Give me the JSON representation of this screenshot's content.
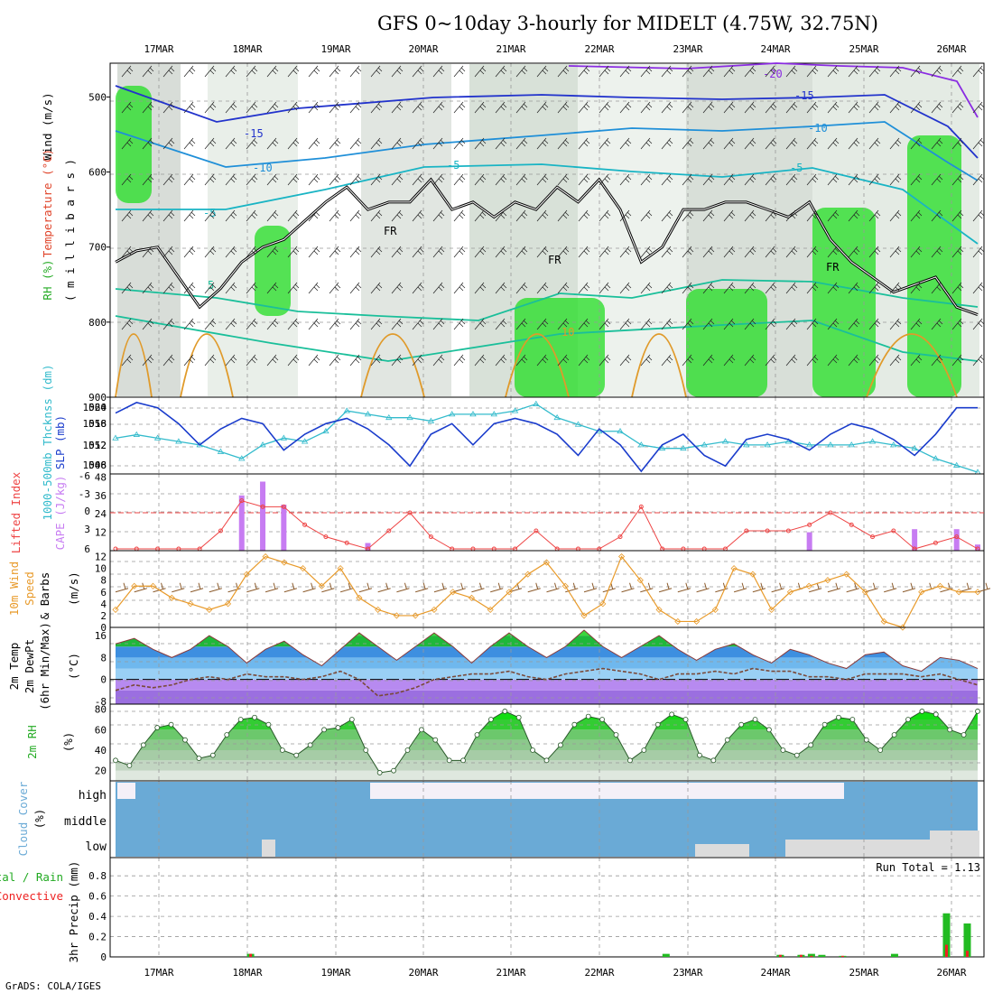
{
  "title": "GFS 0~10day 3-hourly for MIDELT (4.75W, 32.75N)",
  "footer": "GrADS: COLA/IGES",
  "dates": [
    "17MAR",
    "18MAR",
    "19MAR",
    "20MAR",
    "21MAR",
    "22MAR",
    "23MAR",
    "24MAR",
    "25MAR",
    "26MAR"
  ],
  "colors": {
    "rh_green": "#22dd22",
    "gray": "#c8cec8",
    "slp": "#1a3ccc",
    "thick": "#33bbcc",
    "lifted": "#ee4444",
    "cape": "#c77cf2",
    "wind": "#e89a2a",
    "barb": "#8b5a2b",
    "cloud": "#6aaad6",
    "rain": "#22bb22",
    "conv": "#ee2222"
  },
  "panel_labels": {
    "wind": "Wind (m/s)",
    "temperature": "Temperature (°C)",
    "rh": "RH (%)",
    "mb": "( m i l l i b a r s )",
    "slp": "SLP (mb)",
    "thickness": "1000-500mb Thcknss (dm)",
    "cape": "CAPE (J/kg)",
    "lifted": "Lifted Index",
    "wind10": "10m Wind",
    "wind10b": "Speed",
    "wind10c": "& Barbs",
    "wind10u": "(m/s)",
    "temp": "2m Temp",
    "dewpt": "2m DewPt",
    "minmax": "(6hr Min/Max)",
    "tunit": "(°C)",
    "rh2": "2m RH",
    "rhunit": "(%)",
    "cloud": "Cloud Cover",
    "cloudunit": "(%)",
    "precip_total": "Total / Rain",
    "precip_conv": "Convective",
    "precip": "3hr Precip (mm)",
    "run_total": "Run Total = 1.13"
  },
  "cloud_levels": [
    "high",
    "middle",
    "low"
  ],
  "chart_data": [
    {
      "type": "area",
      "name": "upper-air cross section",
      "ylabel": "millibars",
      "y_ticks": [
        500,
        600,
        700,
        800,
        900
      ],
      "ylim": [
        900,
        455
      ],
      "isotherm_labels": [
        "-20",
        "-15",
        "-10",
        "-5",
        "5",
        "10",
        "FR"
      ],
      "freezing_level_mb": [
        720,
        705,
        700,
        740,
        780,
        755,
        720,
        700,
        690,
        665,
        640,
        620,
        650,
        640,
        640,
        610,
        650,
        640,
        660,
        640,
        650,
        620,
        640,
        610,
        650,
        720,
        700,
        650,
        650,
        640,
        640,
        650,
        660,
        640,
        690,
        720,
        740,
        760,
        750,
        740,
        780,
        790
      ]
    },
    {
      "type": "line",
      "name": "slp and thickness",
      "ylabel": "SLP (mb)",
      "y_ticks_left": [
        546,
        552,
        558,
        564
      ],
      "y_ticks_right": [
        1008,
        1012,
        1016,
        1020
      ],
      "series": [
        {
          "name": "SLP (mb)",
          "ylim": [
            1006.5,
            1021
          ],
          "values": [
            1018,
            1020,
            1019,
            1016,
            1012,
            1015,
            1017,
            1016,
            1011,
            1014,
            1016,
            1017,
            1015,
            1012,
            1008,
            1014,
            1016,
            1012,
            1016,
            1017,
            1016,
            1014,
            1010,
            1015,
            1012,
            1007,
            1012,
            1014,
            1010,
            1008,
            1013,
            1014,
            1013,
            1011,
            1014,
            1016,
            1015,
            1013,
            1010,
            1014,
            1019,
            1019
          ]
        },
        {
          "name": "1000-500mb Thcknss (dm)",
          "ylim": [
            543.5,
            566
          ],
          "values": [
            554,
            555,
            554,
            553,
            552,
            550,
            548,
            552,
            554,
            553,
            556,
            562,
            561,
            560,
            560,
            559,
            561,
            561,
            561,
            562,
            564,
            560,
            558,
            556,
            556,
            552,
            551,
            551,
            552,
            553,
            552,
            552,
            553,
            552,
            552,
            552,
            553,
            552,
            551,
            548,
            546,
            544
          ]
        }
      ]
    },
    {
      "type": "bar",
      "name": "cape and lifted index",
      "ylabel": "CAPE (J/kg)",
      "y_ticks": [
        12,
        24,
        36,
        48
      ],
      "y_ticks_li": [
        "6",
        "3",
        "0",
        "-3",
        "-6"
      ],
      "ylim": [
        0,
        50
      ],
      "series": [
        {
          "name": "CAPE (J/kg)",
          "values": [
            0,
            0,
            0,
            0,
            0,
            0,
            36,
            45,
            30,
            0,
            0,
            0,
            5,
            0,
            0,
            0,
            0,
            0,
            0,
            0,
            0,
            0,
            0,
            0,
            0,
            0,
            0,
            0,
            0,
            0,
            0,
            0,
            0,
            12,
            0,
            0,
            0,
            0,
            14,
            0,
            14,
            4
          ]
        },
        {
          "name": "Lifted Index",
          "values": [
            6,
            6,
            6,
            6,
            6,
            3,
            -2,
            -1,
            -1,
            2,
            4,
            5,
            6,
            3,
            0,
            4,
            6,
            6,
            6,
            6,
            3,
            6,
            6,
            6,
            4,
            -1,
            6,
            6,
            6,
            6,
            3,
            3,
            3,
            2,
            0,
            2,
            4,
            3,
            6,
            5,
            4,
            6
          ]
        }
      ]
    },
    {
      "type": "line",
      "name": "10m wind speed",
      "ylabel": "(m/s)",
      "y_ticks": [
        0,
        2,
        4,
        6,
        8,
        10,
        12
      ],
      "ylim": [
        0,
        13
      ],
      "series": [
        {
          "name": "10m Wind Speed",
          "values": [
            3,
            7,
            7,
            5,
            4,
            3,
            4,
            9,
            12,
            11,
            10,
            7,
            10,
            5,
            3,
            2,
            2,
            3,
            6,
            5,
            3,
            6,
            9,
            11,
            7,
            2,
            4,
            12,
            8,
            3,
            1,
            1,
            3,
            10,
            9,
            3,
            6,
            7,
            8,
            9,
            6,
            1,
            0,
            6,
            7,
            6,
            6
          ]
        }
      ]
    },
    {
      "type": "area",
      "name": "2m temperature and dewpoint",
      "ylabel": "(°C)",
      "y_ticks": [
        -8,
        0,
        8,
        16
      ],
      "ylim": [
        -9,
        19
      ],
      "series": [
        {
          "name": "2m Temp",
          "values": [
            13,
            15,
            11,
            8,
            11,
            16,
            12,
            6,
            11,
            14,
            9,
            5,
            11,
            17,
            12,
            7,
            12,
            17,
            12,
            6,
            12,
            17,
            12,
            8,
            12,
            18,
            12,
            8,
            12,
            16,
            11,
            7,
            11,
            13,
            9,
            6,
            11,
            9,
            6,
            4,
            9,
            10,
            5,
            3,
            8,
            7,
            4
          ]
        },
        {
          "name": "2m DewPt",
          "values": [
            -4,
            -2,
            -3,
            -2,
            0,
            1,
            0,
            2,
            1,
            1,
            0,
            1,
            3,
            0,
            -6,
            -5,
            -3,
            0,
            1,
            2,
            2,
            3,
            1,
            0,
            2,
            3,
            4,
            3,
            2,
            0,
            2,
            2,
            3,
            2,
            4,
            3,
            3,
            1,
            1,
            0,
            2,
            2,
            2,
            1,
            2,
            0,
            -2
          ]
        }
      ]
    },
    {
      "type": "area",
      "name": "2m relative humidity",
      "ylabel": "(%)",
      "y_ticks": [
        20,
        40,
        60,
        80
      ],
      "ylim": [
        10,
        85
      ],
      "series": [
        {
          "name": "2m RH",
          "values": [
            30,
            25,
            45,
            62,
            65,
            50,
            32,
            35,
            55,
            70,
            72,
            65,
            40,
            35,
            45,
            60,
            62,
            70,
            40,
            18,
            20,
            40,
            60,
            50,
            30,
            30,
            55,
            70,
            78,
            72,
            40,
            30,
            45,
            65,
            73,
            70,
            55,
            30,
            40,
            65,
            75,
            70,
            35,
            30,
            50,
            65,
            70,
            60,
            40,
            35,
            45,
            65,
            72,
            70,
            50,
            40,
            55,
            70,
            78,
            75,
            60,
            55,
            78
          ]
        }
      ]
    },
    {
      "type": "heatmap",
      "name": "cloud cover",
      "ylabel": "(%)",
      "rows": [
        "high",
        "middle",
        "low"
      ]
    },
    {
      "type": "bar",
      "name": "3hr precip",
      "ylabel": "3hr Precip (mm)",
      "y_ticks": [
        0,
        0.2,
        0.4,
        0.6,
        0.8
      ],
      "ylim": [
        0,
        0.98
      ],
      "series": [
        {
          "name": "Total / Rain",
          "values": [
            0,
            0,
            0,
            0,
            0,
            0,
            0,
            0,
            0,
            0,
            0,
            0,
            0,
            0.03,
            0,
            0,
            0,
            0,
            0,
            0,
            0,
            0,
            0,
            0,
            0,
            0,
            0,
            0,
            0,
            0,
            0,
            0,
            0,
            0,
            0,
            0,
            0,
            0,
            0,
            0,
            0,
            0,
            0,
            0,
            0,
            0,
            0,
            0,
            0,
            0,
            0,
            0,
            0,
            0.03,
            0,
            0,
            0,
            0,
            0,
            0,
            0,
            0,
            0,
            0,
            0.02,
            0,
            0.02,
            0.03,
            0.02,
            0,
            0.01,
            0,
            0,
            0,
            0,
            0.03,
            0,
            0,
            0,
            0,
            0.43,
            0,
            0.33,
            0
          ]
        },
        {
          "name": "Convective",
          "values": [
            0,
            0,
            0,
            0,
            0,
            0,
            0,
            0,
            0,
            0,
            0,
            0,
            0,
            0.03,
            0,
            0,
            0,
            0,
            0,
            0,
            0,
            0,
            0,
            0,
            0,
            0,
            0,
            0,
            0,
            0,
            0,
            0,
            0,
            0,
            0,
            0,
            0,
            0,
            0,
            0,
            0,
            0,
            0,
            0,
            0,
            0,
            0,
            0,
            0,
            0,
            0,
            0,
            0,
            0,
            0,
            0,
            0,
            0,
            0,
            0,
            0,
            0,
            0,
            0,
            0.02,
            0,
            0.02,
            0.01,
            0,
            0,
            0.01,
            0,
            0,
            0,
            0,
            0,
            0,
            0,
            0,
            0,
            0.12,
            0,
            0.06,
            0
          ]
        }
      ]
    }
  ]
}
